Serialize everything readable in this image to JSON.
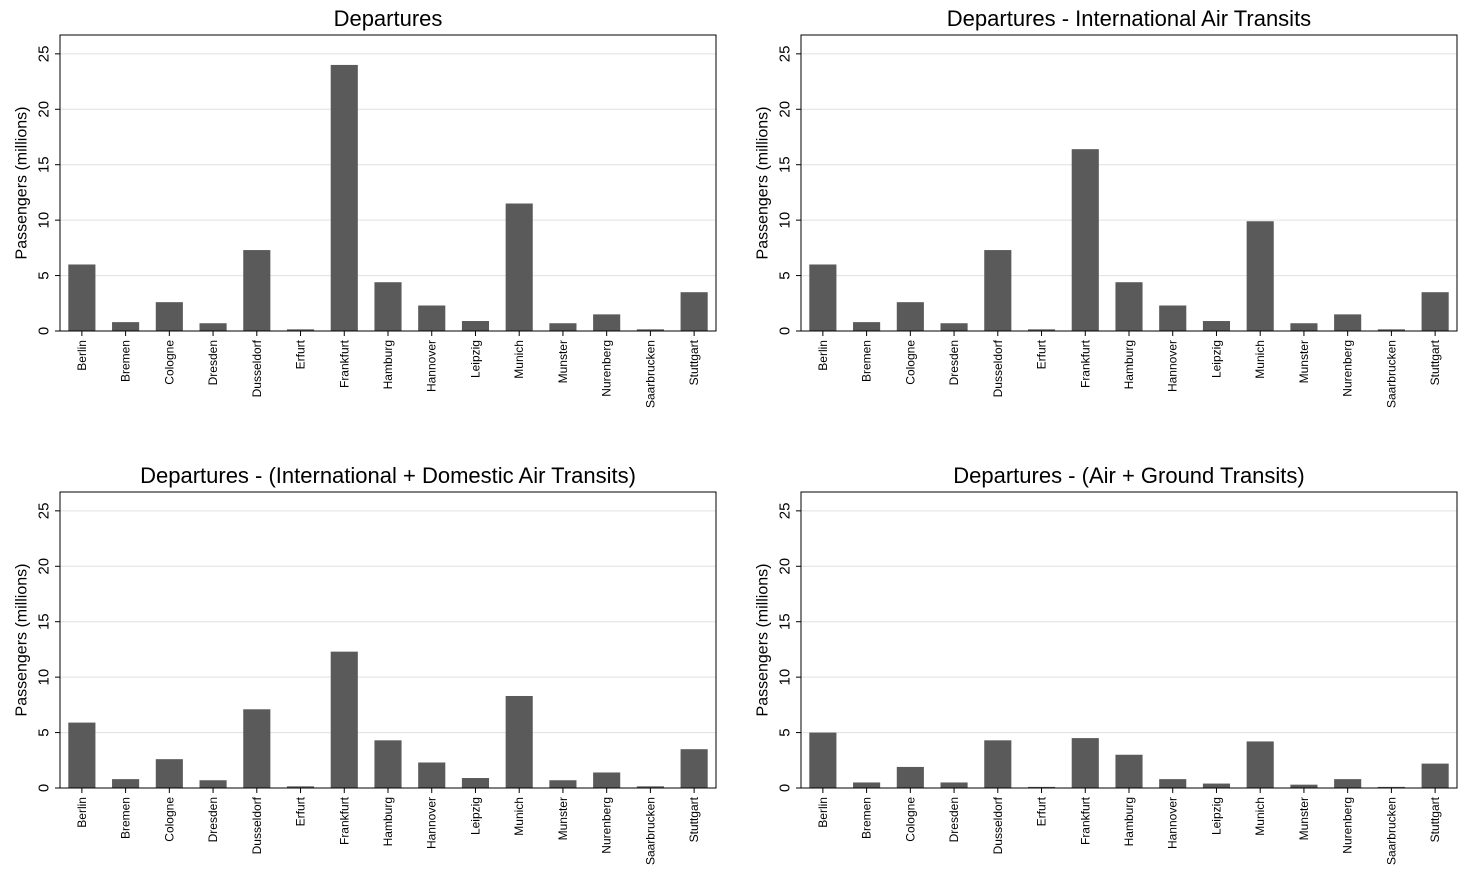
{
  "chart_data": [
    {
      "type": "bar",
      "title": "Departures",
      "ylabel": "Passengers (millions)",
      "xlabel": "",
      "ylim": [
        0,
        26.7
      ],
      "yticks": [
        0,
        5,
        10,
        15,
        20,
        25
      ],
      "grid": true,
      "categories": [
        "Berlin",
        "Bremen",
        "Cologne",
        "Dresden",
        "Dusseldorf",
        "Erfurt",
        "Frankfurt",
        "Hamburg",
        "Hannover",
        "Leipzig",
        "Munich",
        "Munster",
        "Nurenberg",
        "Saarbrucken",
        "Stuttgart"
      ],
      "values": [
        6.0,
        0.8,
        2.6,
        0.7,
        7.3,
        0.15,
        24.0,
        4.4,
        2.3,
        0.9,
        11.5,
        0.7,
        1.5,
        0.15,
        3.5
      ]
    },
    {
      "type": "bar",
      "title": "Departures - International Air Transits",
      "ylabel": "Passengers (millions)",
      "xlabel": "",
      "ylim": [
        0,
        26.7
      ],
      "yticks": [
        0,
        5,
        10,
        15,
        20,
        25
      ],
      "grid": true,
      "categories": [
        "Berlin",
        "Bremen",
        "Cologne",
        "Dresden",
        "Dusseldorf",
        "Erfurt",
        "Frankfurt",
        "Hamburg",
        "Hannover",
        "Leipzig",
        "Munich",
        "Munster",
        "Nurenberg",
        "Saarbrucken",
        "Stuttgart"
      ],
      "values": [
        6.0,
        0.8,
        2.6,
        0.7,
        7.3,
        0.15,
        16.4,
        4.4,
        2.3,
        0.9,
        9.9,
        0.7,
        1.5,
        0.15,
        3.5
      ]
    },
    {
      "type": "bar",
      "title": "Departures - (International + Domestic Air Transits)",
      "ylabel": "Passengers (millions)",
      "xlabel": "",
      "ylim": [
        0,
        26.7
      ],
      "yticks": [
        0,
        5,
        10,
        15,
        20,
        25
      ],
      "grid": true,
      "categories": [
        "Berlin",
        "Bremen",
        "Cologne",
        "Dresden",
        "Dusseldorf",
        "Erfurt",
        "Frankfurt",
        "Hamburg",
        "Hannover",
        "Leipzig",
        "Munich",
        "Munster",
        "Nurenberg",
        "Saarbrucken",
        "Stuttgart"
      ],
      "values": [
        5.9,
        0.8,
        2.6,
        0.7,
        7.1,
        0.15,
        12.3,
        4.3,
        2.3,
        0.9,
        8.3,
        0.7,
        1.4,
        0.15,
        3.5
      ]
    },
    {
      "type": "bar",
      "title": "Departures - (Air + Ground Transits)",
      "ylabel": "Passengers (millions)",
      "xlabel": "",
      "ylim": [
        0,
        26.7
      ],
      "yticks": [
        0,
        5,
        10,
        15,
        20,
        25
      ],
      "grid": true,
      "categories": [
        "Berlin",
        "Bremen",
        "Cologne",
        "Dresden",
        "Dusseldorf",
        "Erfurt",
        "Frankfurt",
        "Hamburg",
        "Hannover",
        "Leipzig",
        "Munich",
        "Munster",
        "Nurenberg",
        "Saarbrucken",
        "Stuttgart"
      ],
      "values": [
        5.0,
        0.5,
        1.9,
        0.5,
        4.3,
        0.1,
        4.5,
        3.0,
        0.8,
        0.4,
        4.2,
        0.3,
        0.8,
        0.1,
        2.2
      ]
    }
  ],
  "colors": {
    "bar": "#5a5a5a",
    "grid": "#e0e0e0",
    "axis": "#000000",
    "background": "#ffffff"
  }
}
